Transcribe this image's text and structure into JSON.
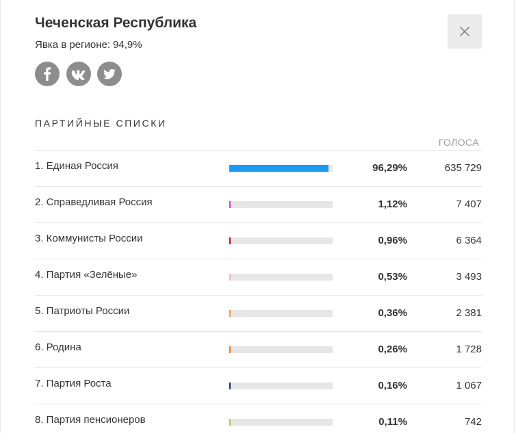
{
  "region": {
    "title": "Чеченская Республика",
    "turnout_label": "Явка в регионе:",
    "turnout_value": "94,9%"
  },
  "social": [
    {
      "name": "facebook-icon",
      "color": "#8d8d8d"
    },
    {
      "name": "vk-icon",
      "color": "#8d8d8d"
    },
    {
      "name": "twitter-icon",
      "color": "#8d8d8d"
    }
  ],
  "close_icon": "close-icon",
  "section": {
    "title": "ПАРТИЙНЫЕ СПИСКИ",
    "votes_header": "ГОЛОСА"
  },
  "parties": [
    {
      "name": "1. Единая Россия",
      "percent_text": "96,29%",
      "share": 0.9629,
      "votes": "635 729",
      "color": "#1a9bef"
    },
    {
      "name": "2. Справедливая Россия",
      "percent_text": "1,12%",
      "share": 0.0112,
      "votes": "7 407",
      "color": "#d63fd6"
    },
    {
      "name": "3. Коммунисты России",
      "percent_text": "0,96%",
      "share": 0.0096,
      "votes": "6 364",
      "color": "#b01020"
    },
    {
      "name": "4. Партия «Зелёные»",
      "percent_text": "0,53%",
      "share": 0.0053,
      "votes": "3 493",
      "color": "#f2b8c6"
    },
    {
      "name": "5. Патриоты России",
      "percent_text": "0,36%",
      "share": 0.0036,
      "votes": "2 381",
      "color": "#f39a3c"
    },
    {
      "name": "6. Родина",
      "percent_text": "0,26%",
      "share": 0.0026,
      "votes": "1 728",
      "color": "#f07a20"
    },
    {
      "name": "7. Партия Роста",
      "percent_text": "0,16%",
      "share": 0.0016,
      "votes": "1 067",
      "color": "#1e2f5a"
    },
    {
      "name": "8. Партия пенсионеров",
      "percent_text": "0,11%",
      "share": 0.0011,
      "votes": "742",
      "color": "#c9b56a"
    }
  ]
}
